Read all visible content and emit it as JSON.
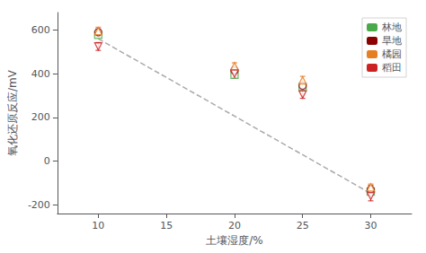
{
  "chart_data": {
    "type": "scatter",
    "xlabel": "土壤湿度/%",
    "ylabel": "氧化还原反应/mV",
    "x": [
      10,
      20,
      25,
      30
    ],
    "series": [
      {
        "name": "林地",
        "marker": "square",
        "color": "#4aaa4a",
        "values": [
          578,
          395,
          340,
          -140
        ],
        "yerr": [
          12,
          15,
          12,
          15
        ]
      },
      {
        "name": "旱地",
        "marker": "circle",
        "color": "#8b0000",
        "values": [
          590,
          415,
          345,
          -130
        ],
        "yerr": [
          15,
          12,
          12,
          18
        ]
      },
      {
        "name": "橘园",
        "marker": "triangle-up",
        "color": "#e67e22",
        "values": [
          595,
          435,
          370,
          -120
        ],
        "yerr": [
          18,
          15,
          18,
          15
        ]
      },
      {
        "name": "稻田",
        "marker": "triangle-down",
        "color": "#cc2222",
        "values": [
          525,
          400,
          305,
          -160
        ],
        "yerr": [
          18,
          18,
          18,
          22
        ]
      }
    ],
    "trend_line": {
      "x": [
        10,
        30
      ],
      "y": [
        560,
        -148
      ],
      "color": "#aaaaaa",
      "line_style": "dashed"
    },
    "xlim": [
      7,
      33
    ],
    "ylim": [
      -240,
      680
    ],
    "xticks": [
      10,
      15,
      20,
      25,
      30
    ],
    "yticks": [
      -200,
      0,
      200,
      400,
      600
    ],
    "grid": false,
    "legend": "upper right"
  }
}
